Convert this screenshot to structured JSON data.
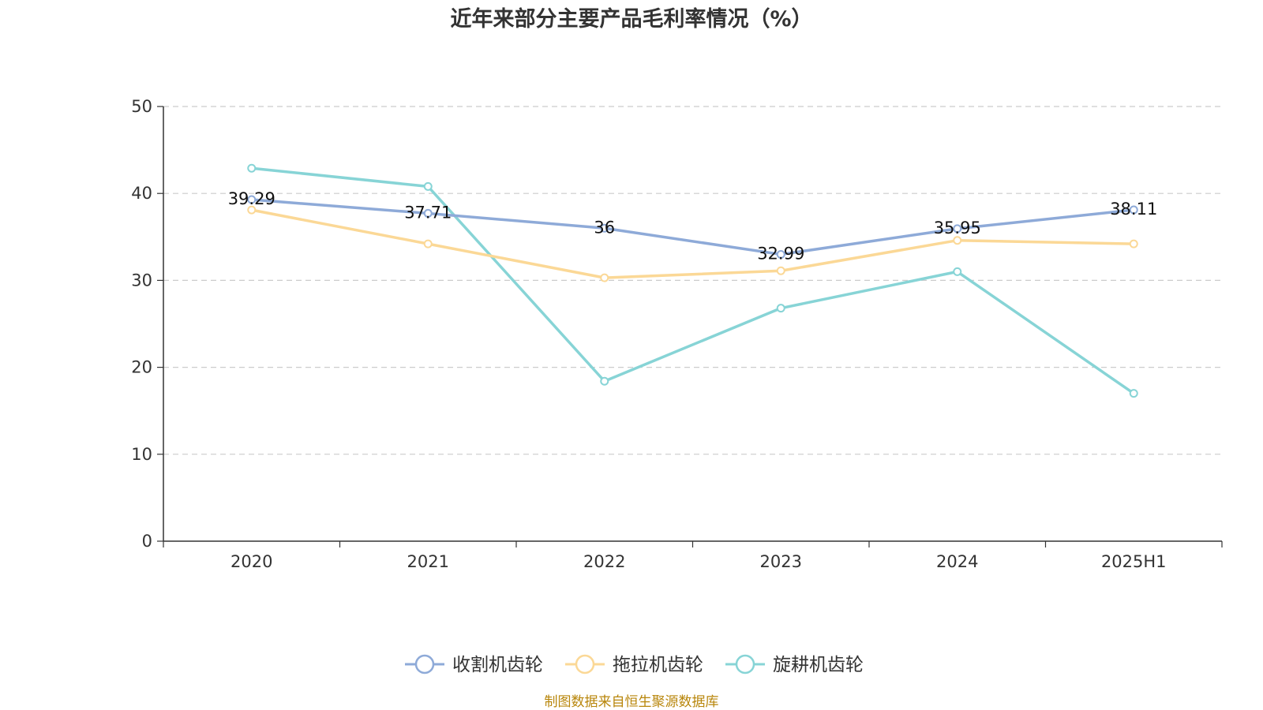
{
  "chart_data": {
    "type": "line",
    "title": "近年来部分主要产品毛利率情况（%）",
    "categories": [
      "2020",
      "2021",
      "2022",
      "2023",
      "2024",
      "2025H1"
    ],
    "ylim": [
      0,
      50
    ],
    "yticks": [
      0,
      10,
      20,
      30,
      40,
      50
    ],
    "grid": true,
    "legend_position": "bottom",
    "series": [
      {
        "name": "收割机齿轮",
        "color": "#8eaad8",
        "values": [
          39.29,
          37.71,
          36,
          32.99,
          35.95,
          38.11
        ],
        "labels": [
          "39.29",
          "37.71",
          "36",
          "32.99",
          "35.95",
          "38.11"
        ]
      },
      {
        "name": "拖拉机齿轮",
        "color": "#fbd896",
        "values": [
          38.1,
          34.2,
          30.3,
          31.1,
          34.6,
          34.2
        ]
      },
      {
        "name": "旋耕机齿轮",
        "color": "#87d4d6",
        "values": [
          42.9,
          40.8,
          18.4,
          26.8,
          31.0,
          17.0
        ]
      }
    ],
    "source": "制图数据来自恒生聚源数据库"
  }
}
